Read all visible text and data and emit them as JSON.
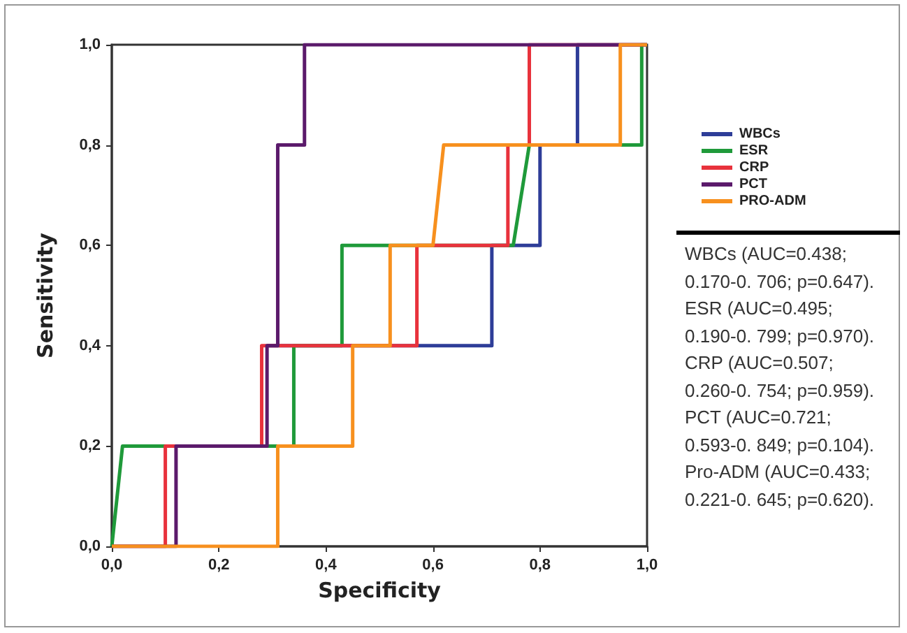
{
  "chart_data": {
    "type": "step",
    "xlabel": "Specificity",
    "ylabel": "Sensitivity",
    "xlim": [
      0,
      1
    ],
    "ylim": [
      0,
      1
    ],
    "xticks": [
      {
        "value": 0,
        "label": "0,0"
      },
      {
        "value": 0.2,
        "label": "0,2"
      },
      {
        "value": 0.4,
        "label": "0,4"
      },
      {
        "value": 0.6,
        "label": "0,6"
      },
      {
        "value": 0.8,
        "label": "0,8"
      },
      {
        "value": 1,
        "label": "1,0"
      }
    ],
    "yticks": [
      {
        "value": 0,
        "label": "0,0"
      },
      {
        "value": 0.2,
        "label": "0,2"
      },
      {
        "value": 0.4,
        "label": "0,4"
      },
      {
        "value": 0.6,
        "label": "0,6"
      },
      {
        "value": 0.8,
        "label": "0,8"
      },
      {
        "value": 1,
        "label": "1,0"
      }
    ],
    "grid": false,
    "legend": "right",
    "marker": "none",
    "line_style": "solid",
    "series": [
      {
        "name": "WBCs",
        "color": "#2e3d98",
        "x": [
          0.29,
          0.71,
          0.71,
          0.8,
          0.8,
          0.87,
          0.87,
          1
        ],
        "values": [
          0.4,
          0.4,
          0.6,
          0.6,
          0.8,
          0.8,
          1,
          1
        ]
      },
      {
        "name": "ESR",
        "color": "#1f9a3a",
        "x": [
          0,
          0.02,
          0.34,
          0.34,
          0.43,
          0.43,
          0.75,
          0.78,
          0.99,
          0.99,
          1
        ],
        "values": [
          0,
          0.2,
          0.2,
          0.4,
          0.4,
          0.6,
          0.6,
          0.8,
          0.8,
          1,
          1
        ]
      },
      {
        "name": "CRP",
        "color": "#e8323c",
        "x": [
          0,
          0.1,
          0.1,
          0.28,
          0.28,
          0.57,
          0.57,
          0.74,
          0.74,
          0.78,
          0.78,
          1
        ],
        "values": [
          0,
          0,
          0.2,
          0.2,
          0.4,
          0.4,
          0.6,
          0.6,
          0.8,
          0.8,
          1,
          1
        ]
      },
      {
        "name": "PCT",
        "color": "#5b1a6b",
        "x": [
          0,
          0.12,
          0.12,
          0.29,
          0.29,
          0.31,
          0.31,
          0.36,
          0.36,
          1
        ],
        "values": [
          0,
          0,
          0.2,
          0.2,
          0.4,
          0.4,
          0.8,
          0.8,
          1,
          1
        ]
      },
      {
        "name": "PRO-ADM",
        "color": "#f7901e",
        "x": [
          0,
          0.31,
          0.31,
          0.45,
          0.45,
          0.52,
          0.52,
          0.6,
          0.62,
          0.95,
          0.95,
          1
        ],
        "values": [
          0,
          0,
          0.2,
          0.2,
          0.4,
          0.4,
          0.6,
          0.6,
          0.8,
          0.8,
          1,
          1
        ]
      }
    ],
    "annotations": [
      "WBCs (AUC=0.438;",
      "0.170-0. 706; p=0.647).",
      "ESR (AUC=0.495;",
      "0.190-0. 799; p=0.970).",
      "CRP (AUC=0.507;",
      "0.260-0. 754; p=0.959).",
      "PCT (AUC=0.721;",
      "0.593-0. 849; p=0.104).",
      "Pro-ADM (AUC=0.433;",
      "0.221-0. 645; p=0.620)."
    ]
  }
}
